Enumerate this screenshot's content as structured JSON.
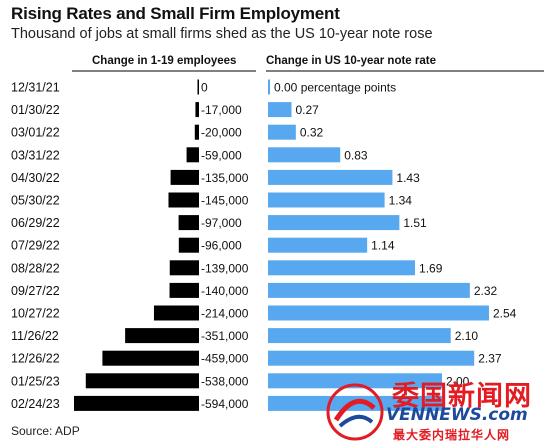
{
  "header": {
    "title": "Rising Rates and Small Firm Employment",
    "subtitle": "Thousand of jobs at small firms shed as the US 10-year note rose"
  },
  "source": "Source: ADP",
  "watermark": {
    "main": "委国新闻网",
    "site": "VENNEWS.com",
    "tagline": "最大委内瑞拉华人网"
  },
  "chart_data": {
    "type": "bar",
    "orientation": "horizontal",
    "categories": [
      "12/31/21",
      "01/30/22",
      "03/01/22",
      "03/31/22",
      "04/30/22",
      "05/30/22",
      "06/29/22",
      "07/29/22",
      "08/28/22",
      "09/27/22",
      "10/27/22",
      "11/26/22",
      "12/26/22",
      "01/25/23",
      "02/24/23"
    ],
    "series": [
      {
        "name": "Change in 1-19 employees",
        "values": [
          0,
          -17000,
          -20000,
          -59000,
          -135000,
          -145000,
          -97000,
          -96000,
          -139000,
          -140000,
          -214000,
          -351000,
          -459000,
          -538000,
          -594000
        ],
        "labels": [
          "0",
          "-17,000",
          "-20,000",
          "-59,000",
          "-135,000",
          "-145,000",
          "-97,000",
          "-96,000",
          "-139,000",
          "-140,000",
          "-214,000",
          "-351,000",
          "-459,000",
          "-538,000",
          "-594,000"
        ],
        "color": "#000000"
      },
      {
        "name": "Change in US 10-year note rate",
        "values": [
          0.0,
          0.27,
          0.32,
          0.83,
          1.43,
          1.34,
          1.51,
          1.14,
          1.69,
          2.32,
          2.54,
          2.1,
          2.37,
          2.0,
          2.0
        ],
        "labels": [
          "0.00 percentage points",
          "0.27",
          "0.32",
          "0.83",
          "1.43",
          "1.34",
          "1.51",
          "1.14",
          "1.69",
          "2.32",
          "2.54",
          "2.10",
          "2.37",
          "2.00",
          ""
        ],
        "color": "#58a8f0"
      }
    ]
  }
}
